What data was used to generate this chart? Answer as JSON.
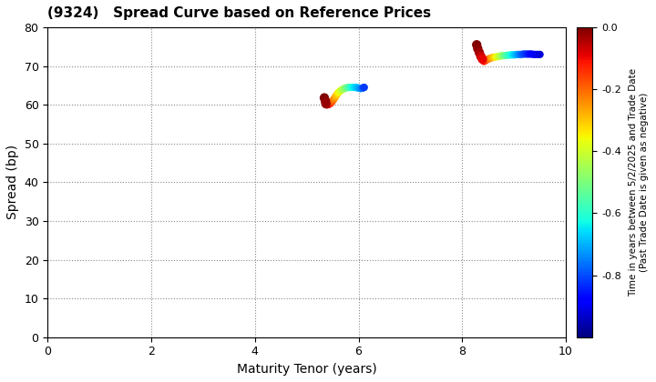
{
  "title": "(9324)   Spread Curve based on Reference Prices",
  "xlabel": "Maturity Tenor (years)",
  "ylabel": "Spread (bp)",
  "colorbar_label": "Time in years between 5/2/2025 and Trade Date\n(Past Trade Date is given as negative)",
  "xlim": [
    0,
    10
  ],
  "ylim": [
    0,
    80
  ],
  "xticks": [
    0,
    2,
    4,
    6,
    8,
    10
  ],
  "yticks": [
    0,
    10,
    20,
    30,
    40,
    50,
    60,
    70,
    80
  ],
  "cmap": "jet",
  "clim": [
    0.0,
    -1.0
  ],
  "cluster1": {
    "x": [
      5.38,
      5.4,
      5.42,
      5.44,
      5.46,
      5.48,
      5.5,
      5.52,
      5.54,
      5.56,
      5.58,
      5.6,
      5.62,
      5.65,
      5.68,
      5.71,
      5.74,
      5.77,
      5.8,
      5.83,
      5.86,
      5.89,
      5.92,
      5.95,
      5.98,
      6.01,
      6.04,
      6.07,
      6.09,
      6.11
    ],
    "y": [
      60.0,
      60.0,
      60.1,
      60.2,
      60.4,
      60.7,
      61.0,
      61.4,
      61.8,
      62.2,
      62.6,
      63.0,
      63.3,
      63.6,
      63.9,
      64.1,
      64.3,
      64.4,
      64.5,
      64.5,
      64.5,
      64.5,
      64.5,
      64.5,
      64.4,
      64.3,
      64.2,
      64.3,
      64.4,
      64.5
    ],
    "c": [
      -0.03,
      -0.05,
      -0.08,
      -0.1,
      -0.13,
      -0.16,
      -0.19,
      -0.22,
      -0.25,
      -0.28,
      -0.3,
      -0.33,
      -0.36,
      -0.39,
      -0.42,
      -0.45,
      -0.48,
      -0.51,
      -0.54,
      -0.57,
      -0.6,
      -0.63,
      -0.65,
      -0.67,
      -0.69,
      -0.71,
      -0.73,
      -0.76,
      -0.79,
      -0.82
    ]
  },
  "cluster1_red": {
    "x": [
      5.34,
      5.36,
      5.37
    ],
    "y": [
      61.8,
      61.0,
      60.3
    ],
    "c": [
      0.0,
      -0.01,
      -0.02
    ]
  },
  "cluster2": {
    "x": [
      8.42,
      8.46,
      8.5,
      8.54,
      8.58,
      8.62,
      8.66,
      8.7,
      8.74,
      8.78,
      8.82,
      8.86,
      8.9,
      8.94,
      8.98,
      9.02,
      9.06,
      9.1,
      9.14,
      9.18,
      9.22,
      9.26,
      9.3,
      9.34,
      9.38,
      9.42,
      9.46,
      9.5
    ],
    "y": [
      71.2,
      71.5,
      71.8,
      72.0,
      72.2,
      72.3,
      72.4,
      72.5,
      72.6,
      72.7,
      72.7,
      72.8,
      72.8,
      72.9,
      72.9,
      72.9,
      73.0,
      73.0,
      73.0,
      73.1,
      73.1,
      73.1,
      73.1,
      73.1,
      73.0,
      73.0,
      73.0,
      73.0
    ],
    "c": [
      -0.12,
      -0.16,
      -0.2,
      -0.24,
      -0.28,
      -0.32,
      -0.36,
      -0.4,
      -0.44,
      -0.48,
      -0.52,
      -0.56,
      -0.59,
      -0.62,
      -0.65,
      -0.68,
      -0.71,
      -0.74,
      -0.77,
      -0.8,
      -0.82,
      -0.84,
      -0.86,
      -0.88,
      -0.89,
      -0.9,
      -0.91,
      -0.92
    ]
  },
  "cluster2_red": {
    "x": [
      8.28,
      8.3,
      8.33,
      8.36,
      8.39
    ],
    "y": [
      75.5,
      74.5,
      73.5,
      72.5,
      71.8
    ],
    "c": [
      0.0,
      -0.01,
      -0.03,
      -0.06,
      -0.09
    ]
  }
}
